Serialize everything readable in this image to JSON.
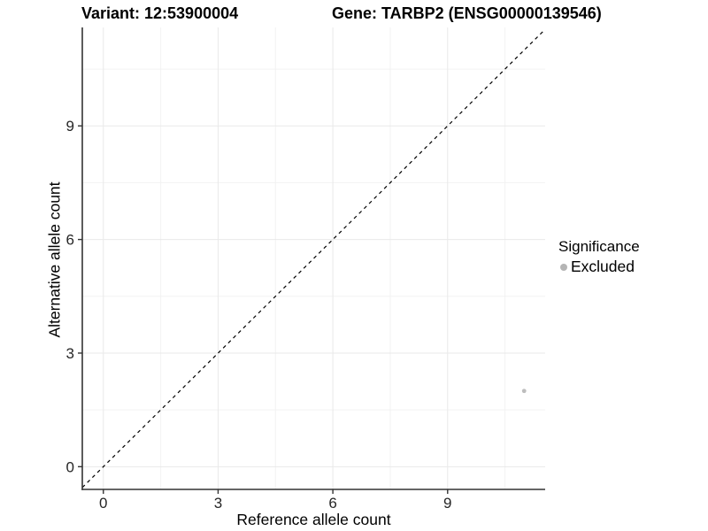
{
  "header": {
    "variant_title": "Variant: 12:53900004",
    "gene_title": "Gene: TARBP2 (ENSG00000139546)"
  },
  "chart_data": {
    "type": "scatter",
    "title_left": "Variant: 12:53900004",
    "title_right": "Gene: TARBP2 (ENSG00000139546)",
    "xlabel": "Reference allele count",
    "ylabel": "Alternative allele count",
    "x_domain": [
      -0.55,
      11.55
    ],
    "y_domain": [
      -0.6,
      11.6
    ],
    "x_ticks": [
      0,
      3,
      6,
      9
    ],
    "y_ticks": [
      0,
      3,
      6,
      9
    ],
    "grid": {
      "major": true,
      "minor": true
    },
    "reference_line": {
      "kind": "identity",
      "slope": 1,
      "intercept": 0,
      "style": "dashed",
      "color": "#000000"
    },
    "series": [
      {
        "name": "Excluded",
        "color": "#bdbdbd",
        "points": [
          {
            "x": 11,
            "y": 2
          }
        ]
      }
    ],
    "legend": {
      "title": "Significance",
      "position": "right",
      "items": [
        {
          "label": "Excluded",
          "color": "#b5b5b5"
        }
      ]
    },
    "style": {
      "background": "#ffffff",
      "grid_major_color": "#e9e9e9",
      "grid_minor_color": "#f2f2f2",
      "axis_line_color": "#333333",
      "tick_label_color": "#262626",
      "point_radius_px": 2.4
    }
  }
}
